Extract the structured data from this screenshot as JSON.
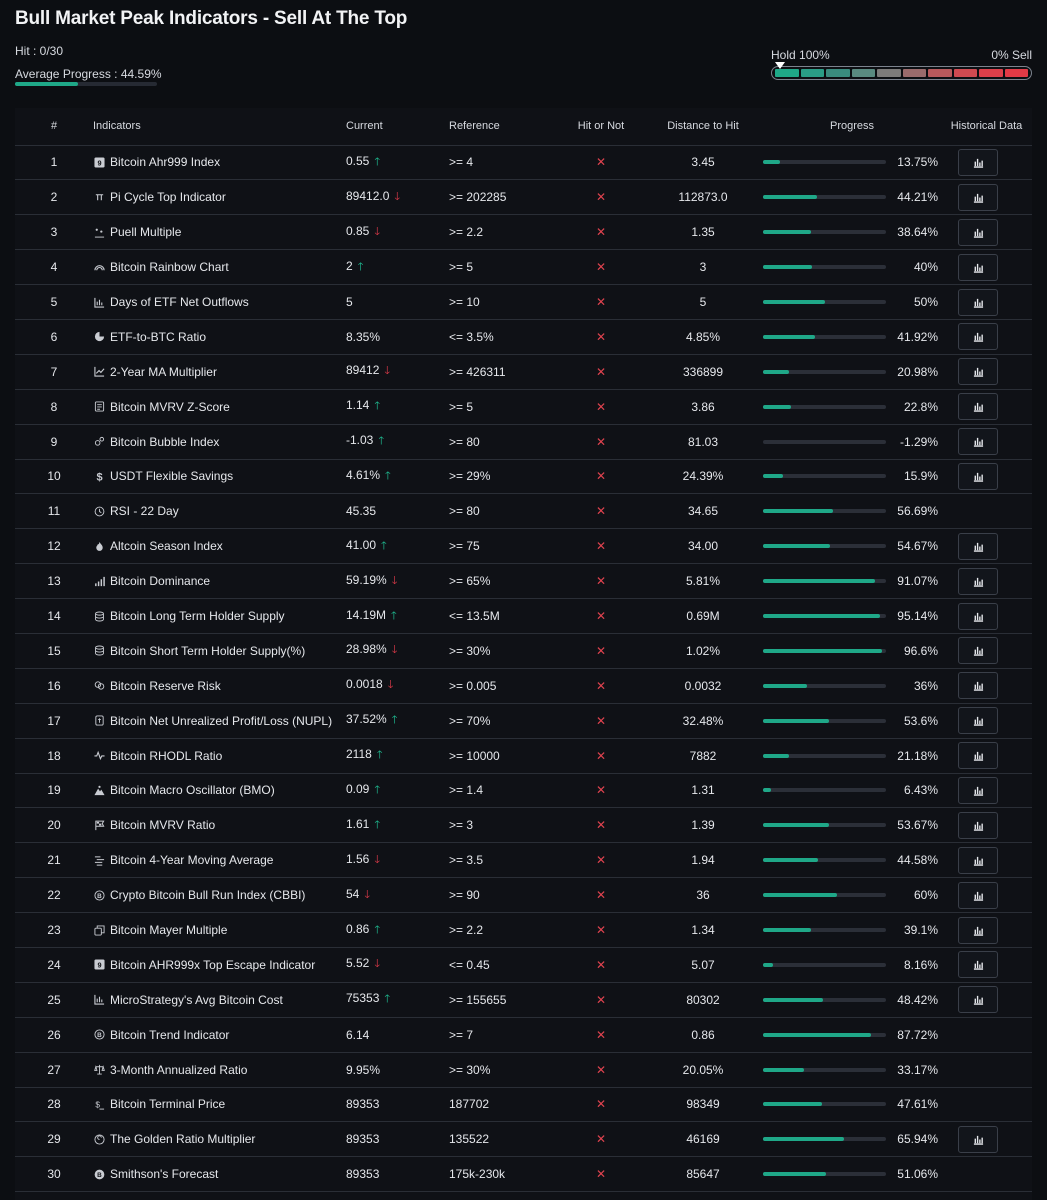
{
  "header": {
    "title": "Bull Market Peak Indicators - Sell At The Top",
    "hit_text": "Hit : 0/30",
    "avg_text": "Average Progress : 44.59%",
    "avg_progress": 0.4459
  },
  "gauge": {
    "left_label": "Hold 100%",
    "right_label": "0% Sell",
    "segments": [
      "#1fa888",
      "#2a9d86",
      "#3a8b7e",
      "#5a8a80",
      "#7d7b7a",
      "#9a6b6c",
      "#b8595c",
      "#cf4a51",
      "#dc3f4a",
      "#e23a46"
    ],
    "marker_position": 0.0
  },
  "columns": [
    "#",
    "Indicators",
    "Current",
    "Reference",
    "Hit or Not",
    "Distance to Hit",
    "Progress",
    "Historical Data"
  ],
  "colors": {
    "accent": "#1fa888",
    "up": "#1fbf94",
    "down": "#e23b4a",
    "miss": "#e0434f"
  },
  "rows": [
    {
      "n": "1",
      "icon": "ahr999-icon",
      "name": "Bitcoin Ahr999 Index",
      "current": "0.55",
      "trend": "up",
      "ref": ">= 4",
      "dist": "3.45",
      "pct": "13.75%",
      "p": 13.75,
      "hist": true
    },
    {
      "n": "2",
      "icon": "pi-cycle-icon",
      "name": "Pi Cycle Top Indicator",
      "current": "89412.0",
      "trend": "down",
      "ref": ">= 202285",
      "dist": "112873.0",
      "pct": "44.21%",
      "p": 44.21,
      "hist": true
    },
    {
      "n": "3",
      "icon": "puell-icon",
      "name": "Puell Multiple",
      "current": "0.85",
      "trend": "down",
      "ref": ">= 2.2",
      "dist": "1.35",
      "pct": "38.64%",
      "p": 38.64,
      "hist": true
    },
    {
      "n": "4",
      "icon": "rainbow-icon",
      "name": "Bitcoin Rainbow Chart",
      "current": "2",
      "trend": "up",
      "ref": ">= 5",
      "dist": "3",
      "pct": "40%",
      "p": 40,
      "hist": true
    },
    {
      "n": "5",
      "icon": "bar-chart-icon",
      "name": "Days of ETF Net Outflows",
      "current": "5",
      "trend": "",
      "ref": ">= 10",
      "dist": "5",
      "pct": "50%",
      "p": 50,
      "hist": true
    },
    {
      "n": "6",
      "icon": "pie-chart-icon",
      "name": "ETF-to-BTC Ratio",
      "current": "8.35%",
      "trend": "",
      "ref": "<= 3.5%",
      "dist": "4.85%",
      "pct": "41.92%",
      "p": 41.92,
      "hist": true
    },
    {
      "n": "7",
      "icon": "line-chart-icon",
      "name": "2-Year MA Multiplier",
      "current": "89412",
      "trend": "down",
      "ref": ">= 426311",
      "dist": "336899",
      "pct": "20.98%",
      "p": 20.98,
      "hist": true
    },
    {
      "n": "8",
      "icon": "mvrv-icon",
      "name": "Bitcoin MVRV Z-Score",
      "current": "1.14",
      "trend": "up",
      "ref": ">= 5",
      "dist": "3.86",
      "pct": "22.8%",
      "p": 22.8,
      "hist": true
    },
    {
      "n": "9",
      "icon": "bubble-icon",
      "name": "Bitcoin Bubble Index",
      "current": "-1.03",
      "trend": "up",
      "ref": ">= 80",
      "dist": "81.03",
      "pct": "-1.29%",
      "p": 0,
      "hist": true
    },
    {
      "n": "10",
      "icon": "dollar-icon",
      "name": "USDT Flexible Savings",
      "current": "4.61%",
      "trend": "up",
      "ref": ">= 29%",
      "dist": "24.39%",
      "pct": "15.9%",
      "p": 15.9,
      "hist": true
    },
    {
      "n": "11",
      "icon": "clock-icon",
      "name": "RSI - 22 Day",
      "current": "45.35",
      "trend": "",
      "ref": ">= 80",
      "dist": "34.65",
      "pct": "56.69%",
      "p": 56.69,
      "hist": false
    },
    {
      "n": "12",
      "icon": "flame-icon",
      "name": "Altcoin Season Index",
      "current": "41.00",
      "trend": "up",
      "ref": ">= 75",
      "dist": "34.00",
      "pct": "54.67%",
      "p": 54.67,
      "hist": true
    },
    {
      "n": "13",
      "icon": "dominance-icon",
      "name": "Bitcoin Dominance",
      "current": "59.19%",
      "trend": "down",
      "ref": ">= 65%",
      "dist": "5.81%",
      "pct": "91.07%",
      "p": 91.07,
      "hist": true
    },
    {
      "n": "14",
      "icon": "database-icon",
      "name": "Bitcoin Long Term Holder Supply",
      "current": "14.19M",
      "trend": "up",
      "ref": "<= 13.5M",
      "dist": "0.69M",
      "pct": "95.14%",
      "p": 95.14,
      "hist": true
    },
    {
      "n": "15",
      "icon": "database-icon",
      "name": "Bitcoin Short Term Holder Supply(%)",
      "current": "28.98%",
      "trend": "down",
      "ref": ">= 30%",
      "dist": "1.02%",
      "pct": "96.6%",
      "p": 96.6,
      "hist": true
    },
    {
      "n": "16",
      "icon": "reserve-icon",
      "name": "Bitcoin Reserve Risk",
      "current": "0.0018",
      "trend": "down",
      "ref": ">= 0.005",
      "dist": "0.0032",
      "pct": "36%",
      "p": 36,
      "hist": true
    },
    {
      "n": "17",
      "icon": "nupl-icon",
      "name": "Bitcoin Net Unrealized Profit/Loss (NUPL)",
      "current": "37.52%",
      "trend": "up",
      "ref": ">= 70%",
      "dist": "32.48%",
      "pct": "53.6%",
      "p": 53.6,
      "hist": true
    },
    {
      "n": "18",
      "icon": "pulse-icon",
      "name": "Bitcoin RHODL Ratio",
      "current": "2118",
      "trend": "up",
      "ref": ">= 10000",
      "dist": "7882",
      "pct": "21.18%",
      "p": 21.18,
      "hist": true
    },
    {
      "n": "19",
      "icon": "mountain-icon",
      "name": "Bitcoin Macro Oscillator (BMO)",
      "current": "0.09",
      "trend": "up",
      "ref": ">= 1.4",
      "dist": "1.31",
      "pct": "6.43%",
      "p": 6.43,
      "hist": true
    },
    {
      "n": "20",
      "icon": "flag-icon",
      "name": "Bitcoin MVRV Ratio",
      "current": "1.61",
      "trend": "up",
      "ref": ">= 3",
      "dist": "1.39",
      "pct": "53.67%",
      "p": 53.67,
      "hist": true
    },
    {
      "n": "21",
      "icon": "list-icon",
      "name": "Bitcoin 4-Year Moving Average",
      "current": "1.56",
      "trend": "down",
      "ref": ">= 3.5",
      "dist": "1.94",
      "pct": "44.58%",
      "p": 44.58,
      "hist": true
    },
    {
      "n": "22",
      "icon": "bitcoin-circle-icon",
      "name": "Crypto Bitcoin Bull Run Index (CBBI)",
      "current": "54",
      "trend": "down",
      "ref": ">= 90",
      "dist": "36",
      "pct": "60%",
      "p": 60,
      "hist": true
    },
    {
      "n": "23",
      "icon": "copy-icon",
      "name": "Bitcoin Mayer Multiple",
      "current": "0.86",
      "trend": "up",
      "ref": ">= 2.2",
      "dist": "1.34",
      "pct": "39.1%",
      "p": 39.1,
      "hist": true
    },
    {
      "n": "24",
      "icon": "ahr999-icon",
      "name": "Bitcoin AHR999x Top Escape Indicator",
      "current": "5.52",
      "trend": "down",
      "ref": "<= 0.45",
      "dist": "5.07",
      "pct": "8.16%",
      "p": 8.16,
      "hist": true
    },
    {
      "n": "25",
      "icon": "bar-chart-icon",
      "name": "MicroStrategy's Avg Bitcoin Cost",
      "current": "75353",
      "trend": "up",
      "ref": ">= 155655",
      "dist": "80302",
      "pct": "48.42%",
      "p": 48.42,
      "hist": true
    },
    {
      "n": "26",
      "icon": "bitcoin-circle-icon",
      "name": "Bitcoin Trend Indicator",
      "current": "6.14",
      "trend": "",
      "ref": ">= 7",
      "dist": "0.86",
      "pct": "87.72%",
      "p": 87.72,
      "hist": false
    },
    {
      "n": "27",
      "icon": "scale-icon",
      "name": "3-Month Annualized Ratio",
      "current": "9.95%",
      "trend": "",
      "ref": ">= 30%",
      "dist": "20.05%",
      "pct": "33.17%",
      "p": 33.17,
      "hist": false
    },
    {
      "n": "28",
      "icon": "dollar-small-icon",
      "name": "Bitcoin Terminal Price",
      "current": "89353",
      "trend": "",
      "ref": "187702",
      "dist": "98349",
      "pct": "47.61%",
      "p": 47.61,
      "hist": false
    },
    {
      "n": "29",
      "icon": "golden-ratio-icon",
      "name": "The Golden Ratio Multiplier",
      "current": "89353",
      "trend": "",
      "ref": "135522",
      "dist": "46169",
      "pct": "65.94%",
      "p": 65.94,
      "hist": true
    },
    {
      "n": "30",
      "icon": "bitcoin-filled-icon",
      "name": "Smithson's Forecast",
      "current": "89353",
      "trend": "",
      "ref": "175k-230k",
      "dist": "85647",
      "pct": "51.06%",
      "p": 51.06,
      "hist": false
    }
  ]
}
